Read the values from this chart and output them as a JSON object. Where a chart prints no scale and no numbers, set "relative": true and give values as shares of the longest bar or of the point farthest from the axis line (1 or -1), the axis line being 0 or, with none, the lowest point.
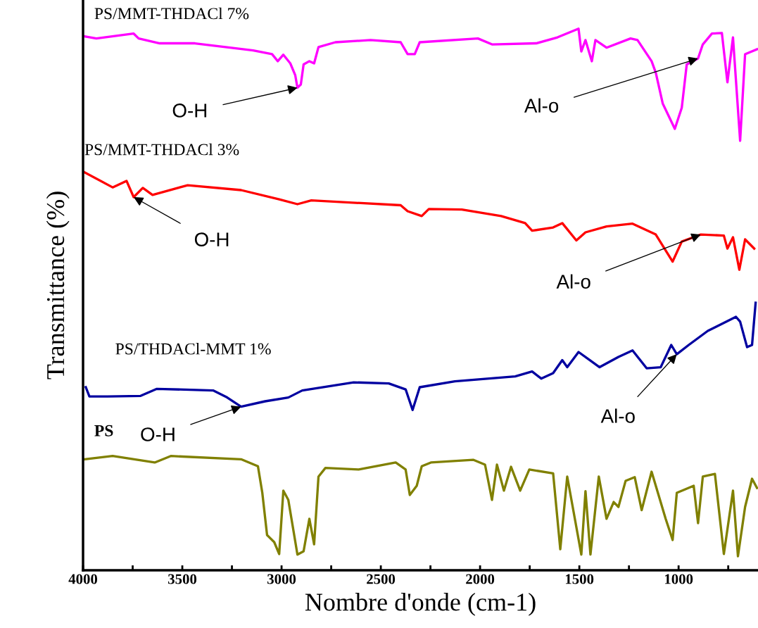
{
  "chart_data": {
    "type": "line",
    "relative": true,
    "xlabel": "Nombre d'onde (cm-1)",
    "ylabel": "Transmittance (%)",
    "xlim": [
      4000,
      600
    ],
    "xticks": [
      4000,
      {
        "value": 3750,
        "label": null
      },
      3500,
      {
        "value": 3250,
        "label": null
      },
      3000,
      {
        "value": 2750,
        "label": null
      },
      2500,
      {
        "value": 2250,
        "label": null
      },
      2000,
      {
        "value": 1750,
        "label": null
      },
      1500,
      {
        "value": 1250,
        "label": null
      },
      1000,
      {
        "value": 750,
        "label": null
      }
    ],
    "tick_labels": "x",
    "grid": false,
    "legend": false,
    "marker": "none",
    "line_style": "solid",
    "series": [
      {
        "name": "PS/MMT-THDACl 7%",
        "color": "#ff00ff",
        "x": [
          3993,
          3933,
          3745,
          3720,
          3614,
          3437,
          3260,
          3143,
          3048,
          3019,
          2991,
          2956,
          2931,
          2920,
          2903,
          2889,
          2860,
          2836,
          2814,
          2729,
          2552,
          2400,
          2365,
          2329,
          2304,
          2011,
          1940,
          1717,
          1610,
          1504,
          1490,
          1469,
          1437,
          1419,
          1363,
          1242,
          1207,
          1136,
          1115,
          1080,
          1019,
          984,
          959,
          902,
          878,
          832,
          782,
          754,
          726,
          690,
          665,
          605
        ],
        "values": [
          0.986,
          0.982,
          0.991,
          0.982,
          0.973,
          0.973,
          0.965,
          0.96,
          0.953,
          0.94,
          0.952,
          0.936,
          0.914,
          0.891,
          0.897,
          0.934,
          0.94,
          0.936,
          0.966,
          0.975,
          0.979,
          0.975,
          0.953,
          0.953,
          0.975,
          0.982,
          0.971,
          0.973,
          0.984,
          1.0,
          0.958,
          0.979,
          0.94,
          0.979,
          0.965,
          0.982,
          0.979,
          0.94,
          0.919,
          0.862,
          0.815,
          0.854,
          0.934,
          0.945,
          0.971,
          0.991,
          0.992,
          0.901,
          0.984,
          0.793,
          0.953,
          0.962
        ]
      },
      {
        "name": "PS/MMT-THDACl 3%",
        "color": "#ff0000",
        "x": [
          3993,
          3851,
          3781,
          3745,
          3699,
          3650,
          3473,
          3204,
          3012,
          2920,
          2850,
          2400,
          2365,
          2294,
          2258,
          2092,
          1894,
          1773,
          1738,
          1632,
          1586,
          1515,
          1469,
          1363,
          1232,
          1115,
          1030,
          984,
          888,
          772,
          754,
          726,
          694,
          665,
          619
        ],
        "values": [
          0.735,
          0.707,
          0.719,
          0.689,
          0.706,
          0.693,
          0.711,
          0.702,
          0.685,
          0.676,
          0.683,
          0.674,
          0.663,
          0.654,
          0.667,
          0.666,
          0.654,
          0.641,
          0.627,
          0.633,
          0.641,
          0.609,
          0.624,
          0.635,
          0.64,
          0.62,
          0.57,
          0.607,
          0.62,
          0.618,
          0.594,
          0.615,
          0.555,
          0.611,
          0.594
        ]
      },
      {
        "name": "PS/THDACl-MMT 1%",
        "color": "#0000a0",
        "x": [
          3986,
          3968,
          3876,
          3710,
          3628,
          3345,
          3274,
          3204,
          3083,
          2966,
          2896,
          2637,
          2460,
          2375,
          2340,
          2304,
          2127,
          1823,
          1738,
          1692,
          1632,
          1586,
          1561,
          1504,
          1398,
          1303,
          1232,
          1161,
          1090,
          1037,
          1009,
          949,
          853,
          711,
          690,
          655,
          630,
          612
        ],
        "values": [
          0.338,
          0.321,
          0.321,
          0.322,
          0.335,
          0.332,
          0.319,
          0.302,
          0.312,
          0.319,
          0.332,
          0.347,
          0.345,
          0.334,
          0.296,
          0.338,
          0.349,
          0.358,
          0.367,
          0.354,
          0.364,
          0.388,
          0.375,
          0.403,
          0.375,
          0.394,
          0.406,
          0.373,
          0.375,
          0.416,
          0.399,
          0.416,
          0.442,
          0.468,
          0.459,
          0.412,
          0.416,
          0.494
        ]
      },
      {
        "name": "PS",
        "color": "#808000",
        "x": [
          3993,
          3851,
          3639,
          3558,
          3204,
          3119,
          3097,
          3073,
          3037,
          3012,
          2991,
          2966,
          2920,
          2889,
          2860,
          2836,
          2814,
          2779,
          2612,
          2425,
          2375,
          2354,
          2319,
          2294,
          2248,
          2035,
          1975,
          1940,
          1915,
          1880,
          1844,
          1798,
          1752,
          1632,
          1596,
          1561,
          1490,
          1469,
          1444,
          1402,
          1363,
          1327,
          1303,
          1267,
          1221,
          1186,
          1136,
          1065,
          1030,
          1009,
          924,
          902,
          878,
          817,
          772,
          726,
          701,
          665,
          630,
          605
        ],
        "values": [
          0.205,
          0.211,
          0.199,
          0.211,
          0.205,
          0.192,
          0.143,
          0.065,
          0.052,
          0.03,
          0.147,
          0.13,
          0.029,
          0.035,
          0.095,
          0.048,
          0.173,
          0.189,
          0.186,
          0.199,
          0.186,
          0.139,
          0.156,
          0.192,
          0.199,
          0.204,
          0.195,
          0.13,
          0.195,
          0.147,
          0.191,
          0.147,
          0.186,
          0.179,
          0.039,
          0.173,
          0.029,
          0.146,
          0.029,
          0.173,
          0.095,
          0.126,
          0.117,
          0.165,
          0.172,
          0.111,
          0.182,
          0.095,
          0.056,
          0.143,
          0.156,
          0.087,
          0.173,
          0.178,
          0.03,
          0.147,
          0.026,
          0.117,
          0.169,
          0.152
        ]
      }
    ],
    "annotations": [
      {
        "text": "O-H",
        "x": 2920,
        "y": 0.891
      },
      {
        "text": "Al-o",
        "x": 902,
        "y": 0.945
      },
      {
        "text": "O-H",
        "x": 3745,
        "y": 0.689
      },
      {
        "text": "Al-o",
        "x": 888,
        "y": 0.62
      },
      {
        "text": "O-H",
        "x": 3204,
        "y": 0.302
      },
      {
        "text": "Al-o",
        "x": 1009,
        "y": 0.399
      }
    ]
  }
}
